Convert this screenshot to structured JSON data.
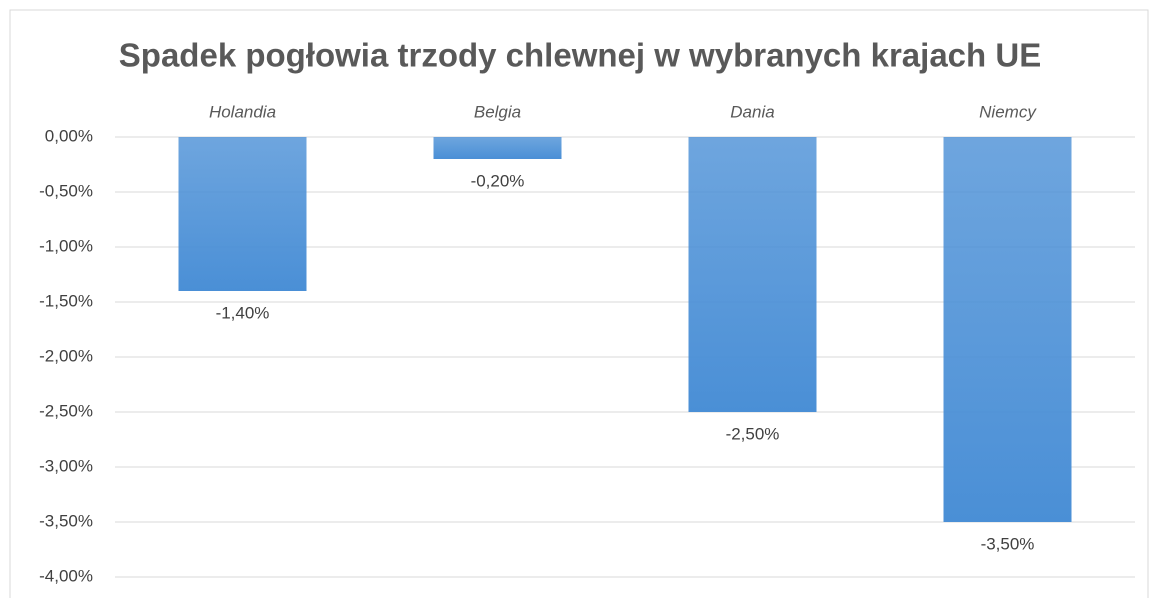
{
  "chart_data": {
    "type": "bar",
    "title": "Spadek pogłowia trzody chlewnej w wybranych krajach UE",
    "categories": [
      "Holandia",
      "Belgia",
      "Dania",
      "Niemcy"
    ],
    "values": [
      -1.4,
      -0.2,
      -2.5,
      -3.5
    ],
    "value_labels": [
      "-1,40%",
      "-0,20%",
      "-2,50%",
      "-3,50%"
    ],
    "color": "#4a8fd6",
    "ylim": [
      -4,
      0
    ],
    "yticks": [
      {
        "value": 0,
        "label": "0,00%"
      },
      {
        "value": -0.5,
        "label": "-0,50%"
      },
      {
        "value": -1,
        "label": "-1,00%"
      },
      {
        "value": -1.5,
        "label": "-1,50%"
      },
      {
        "value": -2,
        "label": "-2,00%"
      },
      {
        "value": -2.5,
        "label": "-2,50%"
      },
      {
        "value": -3,
        "label": "-3,00%"
      },
      {
        "value": -3.5,
        "label": "-3,50%"
      },
      {
        "value": -4,
        "label": "-4,00%"
      }
    ],
    "grid": true
  }
}
